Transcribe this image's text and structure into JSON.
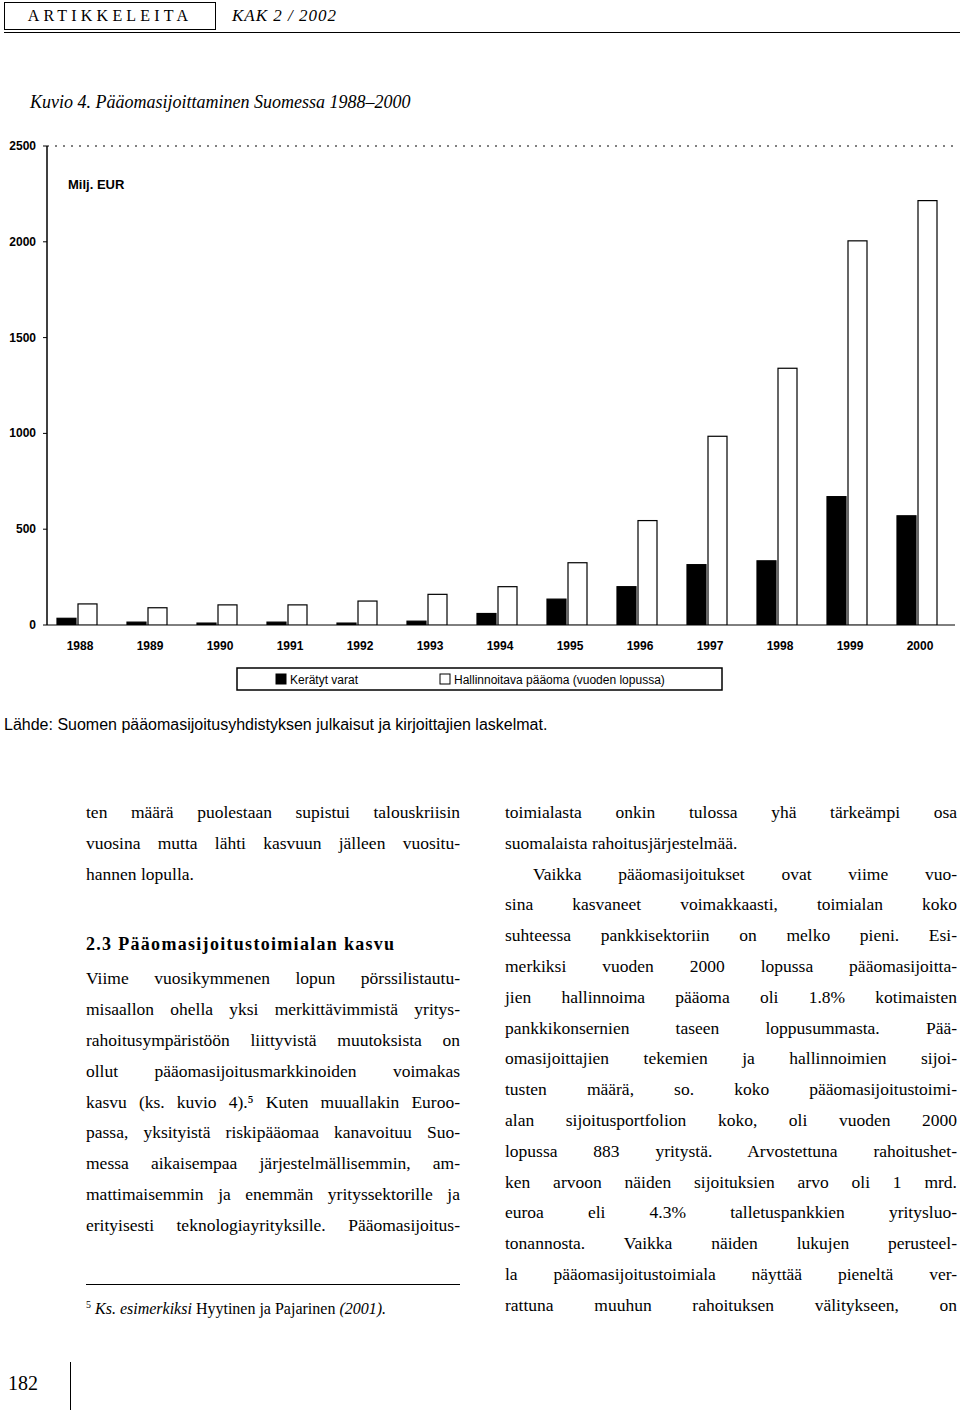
{
  "header": {
    "section": "ARTIKKELEITA",
    "issue": "KAK 2 / 2002"
  },
  "figure": {
    "caption": "Kuvio 4. Pääomasijoittaminen Suomessa 1988–2000",
    "source": "Lähde: Suomen pääomasijoitusyhdistyksen julkaisut ja kirjoittajien laskelmat."
  },
  "chart_data": {
    "type": "bar",
    "y_label": "Milj. EUR",
    "categories": [
      "1988",
      "1989",
      "1990",
      "1991",
      "1992",
      "1993",
      "1994",
      "1995",
      "1996",
      "1997",
      "1998",
      "1999",
      "2000"
    ],
    "series": [
      {
        "name": "Kerätyt varat",
        "color": "#000000",
        "values": [
          35,
          15,
          10,
          15,
          10,
          20,
          60,
          135,
          200,
          315,
          335,
          670,
          570
        ]
      },
      {
        "name": "Hallinnoitava pääoma (vuoden lopussa)",
        "color": "#ffffff",
        "values": [
          110,
          90,
          105,
          105,
          125,
          160,
          200,
          325,
          545,
          985,
          1340,
          2005,
          2215
        ]
      }
    ],
    "ylim": [
      0,
      2500
    ],
    "yticks": [
      0,
      500,
      1000,
      1500,
      2000,
      2500
    ],
    "grid": false,
    "legend": "bottom"
  },
  "body": {
    "left": [
      {
        "lines": [
          "ten määrä puolestaan supistui talouskriisin",
          "vuosina mutta lähti kasvuun jälleen vuositu-",
          "hannen lopulla."
        ]
      },
      {
        "heading": "2.3 Pääomasijoitustoimialan kasvu",
        "lines": [
          "Viime vuosikymmenen lopun pörssilistautu-",
          "misaallon ohella yksi merkittävimmistä yritys-",
          "rahoitusympäristöön liittyvistä muutoksista on",
          "ollut pääomasijoitusmarkkinoiden voimakas",
          "kasvu (ks. kuvio 4).⁵ Kuten muuallakin Euroo-",
          "passa, yksityistä riskipääomaa kanavoituu Suo-",
          "messa aikaisempaa järjestelmällisemmin, am-",
          "mattimaisemmin ja enemmän yrityssektorille ja",
          "erityisesti teknologiayrityksille. Pääomasijoitus-"
        ]
      }
    ],
    "right": [
      {
        "lines": [
          "toimialasta onkin tulossa yhä tärkeämpi osa",
          "suomalaista rahoitusjärjestelmää."
        ]
      },
      {
        "lines": [
          "Vaikka pääomasijoitukset ovat viime vuo-",
          "sina kasvaneet voimakkaasti, toimialan koko",
          "suhteessa pankkisektoriin on melko pieni. Esi-",
          "merkiksi vuoden 2000 lopussa pääomasijoitta-",
          "jien hallinnoima pääoma oli 1.8% kotimaisten",
          "pankkikonsernien taseen loppusummasta. Pää-",
          "omasijoittajien tekemien ja hallinnoimien sijoi-",
          "tusten määrä, so. koko pääomasijoitustoimi-",
          "alan sijoitusportfolion koko, oli vuoden 2000",
          "lopussa 883 yritystä. Arvostettuna rahoitushet-",
          "ken arvoon näiden sijoituksien arvo oli 1 mrd.",
          "euroa eli 4.3% talletuspankkien yritysluo-",
          "tonannosta. Vaikka näiden lukujen perusteel-",
          "la pääomasijoitustoimiala näyttää pieneltä ver-",
          "rattuna muuhun rahoituksen välitykseen, on"
        ]
      }
    ]
  },
  "footnote": {
    "mark": "5",
    "lead": "Ks. esimerkiksi",
    "authors": "Hyytinen ja Pajarinen",
    "year": "(2001)."
  },
  "page_number": "182"
}
